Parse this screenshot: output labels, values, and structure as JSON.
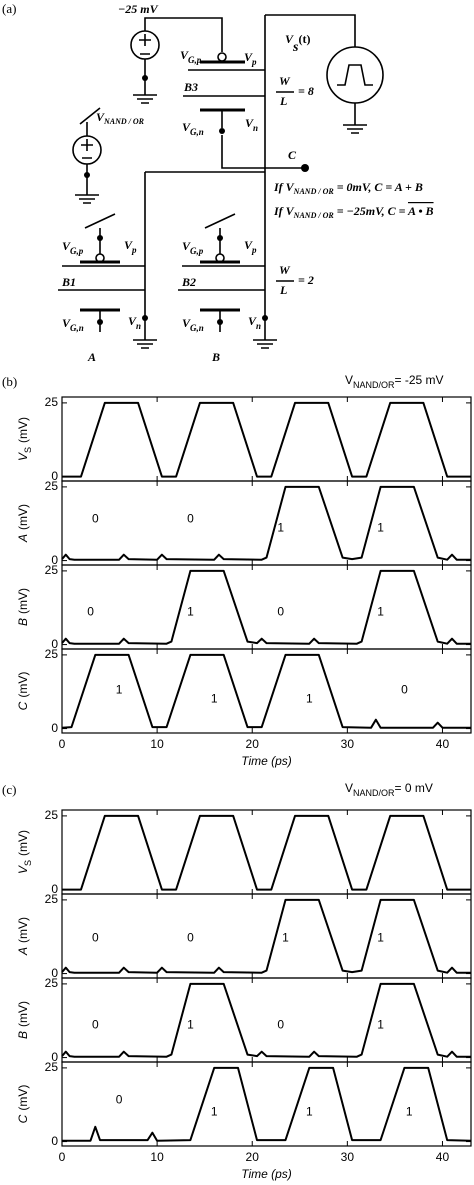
{
  "diagram": {
    "label": "(a)",
    "supply": "−25 mV",
    "vgp_top": [
      "V",
      "G,p"
    ],
    "vp_top": [
      "V",
      "p"
    ],
    "vs": [
      "V",
      "s",
      "(t)"
    ],
    "b3": "B3",
    "wl8": [
      "W",
      "L",
      "= 8"
    ],
    "vnand": [
      "V",
      "NAND / OR"
    ],
    "vgn_top": [
      "V",
      "G,n"
    ],
    "vn_top": [
      "V",
      "n"
    ],
    "node_c": "C",
    "rule_or": [
      "If V",
      "NAND / OR",
      " = 0mV, C = A + B"
    ],
    "rule_nand": [
      "If V",
      "NAND / OR",
      " = −25mV, C = ",
      "A • B"
    ],
    "vgp_a": [
      "V",
      "G,p"
    ],
    "vp_a": [
      "V",
      "p"
    ],
    "vgp_b": [
      "V",
      "G,p"
    ],
    "vp_b": [
      "V",
      "p"
    ],
    "b1": "B1",
    "b2": "B2",
    "wl2": [
      "W",
      "L",
      "= 2"
    ],
    "vgn_a": [
      "V",
      "G,n"
    ],
    "vn_a": [
      "V",
      "n"
    ],
    "vgn_b": [
      "V",
      "G,n"
    ],
    "vn_b": [
      "V",
      "n"
    ],
    "in_a": "A",
    "in_b": "B"
  },
  "panels": [
    {
      "label": "(b)",
      "condition": [
        "V",
        "NAND/OR",
        "= -25 mV"
      ],
      "xlabel": "Time (ps)"
    },
    {
      "label": "(c)",
      "condition": [
        "V",
        "NAND/OR",
        "= 0 mV"
      ],
      "xlabel": "Time (ps)"
    }
  ],
  "chart_data": [
    {
      "type": "line",
      "ylabel": "V",
      "ylabel_sub": "S",
      "ylabel_unit": "(mV)",
      "color": "#000000",
      "x": [
        0,
        2,
        4.5,
        8,
        10.5,
        12,
        14.5,
        18,
        20.5,
        22,
        24.5,
        28,
        30.5,
        32,
        34.5,
        38,
        40.5,
        43
      ],
      "values": [
        0,
        0,
        25,
        25,
        0,
        0,
        25,
        25,
        0,
        0,
        25,
        25,
        0,
        0,
        25,
        25,
        0,
        0
      ],
      "xlim": [
        0,
        43
      ],
      "ylim": [
        -1.5,
        27
      ],
      "xticks": [
        0,
        10,
        20,
        30,
        40
      ],
      "yticks": [
        0,
        25
      ],
      "annotations": []
    },
    {
      "type": "line",
      "ylabel": "A",
      "ylabel_unit": "(mV)",
      "color": "#000000",
      "x": [
        0,
        0.4,
        0.8,
        1.3,
        6,
        6.5,
        7,
        10,
        10.5,
        11,
        16,
        16.5,
        17,
        21,
        21.5,
        23.5,
        27,
        29.5,
        30.5,
        31.5,
        33.5,
        37,
        39.5,
        40.5,
        41,
        41.5,
        43
      ],
      "values": [
        0.5,
        2,
        0.5,
        0.3,
        0.3,
        2,
        0.5,
        0.3,
        2,
        0.5,
        0.3,
        2,
        0.5,
        0.3,
        1,
        25,
        25,
        1,
        0.5,
        1,
        25,
        25,
        1,
        0.3,
        2,
        0.3,
        0.3
      ],
      "xlim": [
        0,
        43
      ],
      "ylim": [
        -1.5,
        27
      ],
      "xticks": [
        0,
        10,
        20,
        30,
        40
      ],
      "yticks": [
        0,
        25
      ],
      "annotations": [
        {
          "text": "0",
          "x": 3.5,
          "y": 14
        },
        {
          "text": "0",
          "x": 13.5,
          "y": 14
        },
        {
          "text": "1",
          "x": 23,
          "y": 11
        },
        {
          "text": "1",
          "x": 33.5,
          "y": 11
        }
      ]
    },
    {
      "type": "line",
      "ylabel": "B",
      "ylabel_unit": "(mV)",
      "color": "#000000",
      "x": [
        0,
        0.4,
        0.8,
        1.3,
        6,
        6.5,
        7,
        11,
        11.5,
        13.5,
        17,
        19.5,
        20.5,
        21,
        21.5,
        26,
        26.5,
        27,
        31,
        31.5,
        33.5,
        37,
        39.5,
        40.5,
        41,
        41.5,
        43
      ],
      "values": [
        0.5,
        2,
        0.5,
        0.3,
        0.3,
        2,
        0.5,
        0.3,
        1,
        25,
        25,
        1,
        0.5,
        2,
        0.5,
        0.3,
        2,
        0.5,
        0.3,
        1,
        25,
        25,
        1,
        0.3,
        2,
        0.3,
        0.3
      ],
      "xlim": [
        0,
        43
      ],
      "ylim": [
        -1.5,
        27
      ],
      "xticks": [
        0,
        10,
        20,
        30,
        40
      ],
      "yticks": [
        0,
        25
      ],
      "annotations": [
        {
          "text": "0",
          "x": 3,
          "y": 11
        },
        {
          "text": "1",
          "x": 13.5,
          "y": 11
        },
        {
          "text": "0",
          "x": 23,
          "y": 11
        },
        {
          "text": "1",
          "x": 33.5,
          "y": 11
        }
      ]
    },
    {
      "type": "line",
      "ylabel": "C",
      "ylabel_unit": "(mV)",
      "color": "#000000",
      "x": [
        0,
        1,
        3.5,
        7,
        9.5,
        11,
        13.5,
        17,
        19.5,
        21,
        23.5,
        27,
        29.5,
        32.5,
        33,
        33.5,
        39,
        39.5,
        40,
        43
      ],
      "values": [
        0.3,
        0.5,
        25,
        25,
        0.5,
        0.5,
        25,
        25,
        0.5,
        0.5,
        25,
        25,
        0.5,
        0.3,
        3,
        0.3,
        0.3,
        2,
        0.3,
        0.3
      ],
      "xlim": [
        0,
        43
      ],
      "ylim": [
        -1.5,
        27
      ],
      "xticks": [
        0,
        10,
        20,
        30,
        40
      ],
      "yticks": [
        0,
        25
      ],
      "annotations": [
        {
          "text": "1",
          "x": 6,
          "y": 13
        },
        {
          "text": "1",
          "x": 16,
          "y": 10
        },
        {
          "text": "1",
          "x": 26,
          "y": 10
        },
        {
          "text": "0",
          "x": 36,
          "y": 13
        }
      ]
    },
    {
      "type": "line",
      "ylabel": "V",
      "ylabel_sub": "S",
      "ylabel_unit": "(mV)",
      "color": "#000000",
      "x": [
        0,
        2,
        4.5,
        8,
        10.5,
        12,
        14.5,
        18,
        20.5,
        22,
        24.5,
        28,
        30.5,
        32,
        34.5,
        38,
        40.5,
        43
      ],
      "values": [
        0,
        0,
        25,
        25,
        0,
        0,
        25,
        25,
        0,
        0,
        25,
        25,
        0,
        0,
        25,
        25,
        0,
        0
      ],
      "xlim": [
        0,
        43
      ],
      "ylim": [
        -1.5,
        27
      ],
      "xticks": [
        0,
        10,
        20,
        30,
        40
      ],
      "yticks": [
        0,
        25
      ],
      "annotations": []
    },
    {
      "type": "line",
      "ylabel": "A",
      "ylabel_unit": "(mV)",
      "color": "#000000",
      "x": [
        0,
        0.4,
        0.8,
        1.3,
        6,
        6.5,
        7,
        10,
        10.5,
        11,
        16,
        16.5,
        17,
        21,
        21.5,
        23.5,
        27,
        29.5,
        30.5,
        31.5,
        33.5,
        37,
        39.5,
        40.5,
        41,
        41.5,
        43
      ],
      "values": [
        0.5,
        2,
        0.5,
        0.3,
        0.3,
        2,
        0.5,
        0.3,
        2,
        0.5,
        0.3,
        2,
        0.5,
        0.3,
        1,
        25,
        25,
        1,
        0.5,
        1,
        25,
        25,
        1,
        0.3,
        2,
        0.3,
        0.3
      ],
      "xlim": [
        0,
        43
      ],
      "ylim": [
        -1.5,
        27
      ],
      "xticks": [
        0,
        10,
        20,
        30,
        40
      ],
      "yticks": [
        0,
        25
      ],
      "annotations": [
        {
          "text": "0",
          "x": 3.5,
          "y": 12
        },
        {
          "text": "0",
          "x": 13.5,
          "y": 12
        },
        {
          "text": "1",
          "x": 23.5,
          "y": 12
        },
        {
          "text": "1",
          "x": 33.5,
          "y": 12
        }
      ]
    },
    {
      "type": "line",
      "ylabel": "B",
      "ylabel_unit": "(mV)",
      "color": "#000000",
      "x": [
        0,
        0.4,
        0.8,
        1.3,
        6,
        6.5,
        7,
        11,
        11.5,
        13.5,
        17,
        19.5,
        20.5,
        21,
        21.5,
        26,
        26.5,
        27,
        31,
        31.5,
        33.5,
        37,
        39.5,
        40.5,
        41,
        41.5,
        43
      ],
      "values": [
        0.5,
        2,
        0.5,
        0.3,
        0.3,
        2,
        0.5,
        0.3,
        1,
        25,
        25,
        1,
        0.5,
        2,
        0.5,
        0.3,
        2,
        0.5,
        0.3,
        1,
        25,
        25,
        1,
        0.3,
        2,
        0.3,
        0.3
      ],
      "xlim": [
        0,
        43
      ],
      "ylim": [
        -1.5,
        27
      ],
      "xticks": [
        0,
        10,
        20,
        30,
        40
      ],
      "yticks": [
        0,
        25
      ],
      "annotations": [
        {
          "text": "0",
          "x": 3.5,
          "y": 11
        },
        {
          "text": "1",
          "x": 13.5,
          "y": 11
        },
        {
          "text": "0",
          "x": 23,
          "y": 11
        },
        {
          "text": "1",
          "x": 33.5,
          "y": 11
        }
      ]
    },
    {
      "type": "line",
      "ylabel": "C",
      "ylabel_unit": "(mV)",
      "color": "#000000",
      "x": [
        0,
        3,
        3.5,
        4,
        9,
        9.5,
        10,
        13.5,
        16,
        18.5,
        20.5,
        23.5,
        26,
        28.5,
        30.5,
        33.5,
        36,
        38.5,
        40.5,
        43
      ],
      "values": [
        0.3,
        0.3,
        5,
        0.5,
        0.5,
        3,
        0.3,
        0.5,
        25,
        25,
        0.5,
        0.5,
        25,
        25,
        0.5,
        0.5,
        25,
        25,
        0.5,
        0.3
      ],
      "xlim": [
        0,
        43
      ],
      "ylim": [
        -1.5,
        27
      ],
      "xticks": [
        0,
        10,
        20,
        30,
        40
      ],
      "yticks": [
        0,
        25
      ],
      "annotations": [
        {
          "text": "0",
          "x": 6,
          "y": 14
        },
        {
          "text": "1",
          "x": 16,
          "y": 10
        },
        {
          "text": "1",
          "x": 26,
          "y": 10
        },
        {
          "text": "1",
          "x": 36.5,
          "y": 10
        }
      ]
    }
  ]
}
